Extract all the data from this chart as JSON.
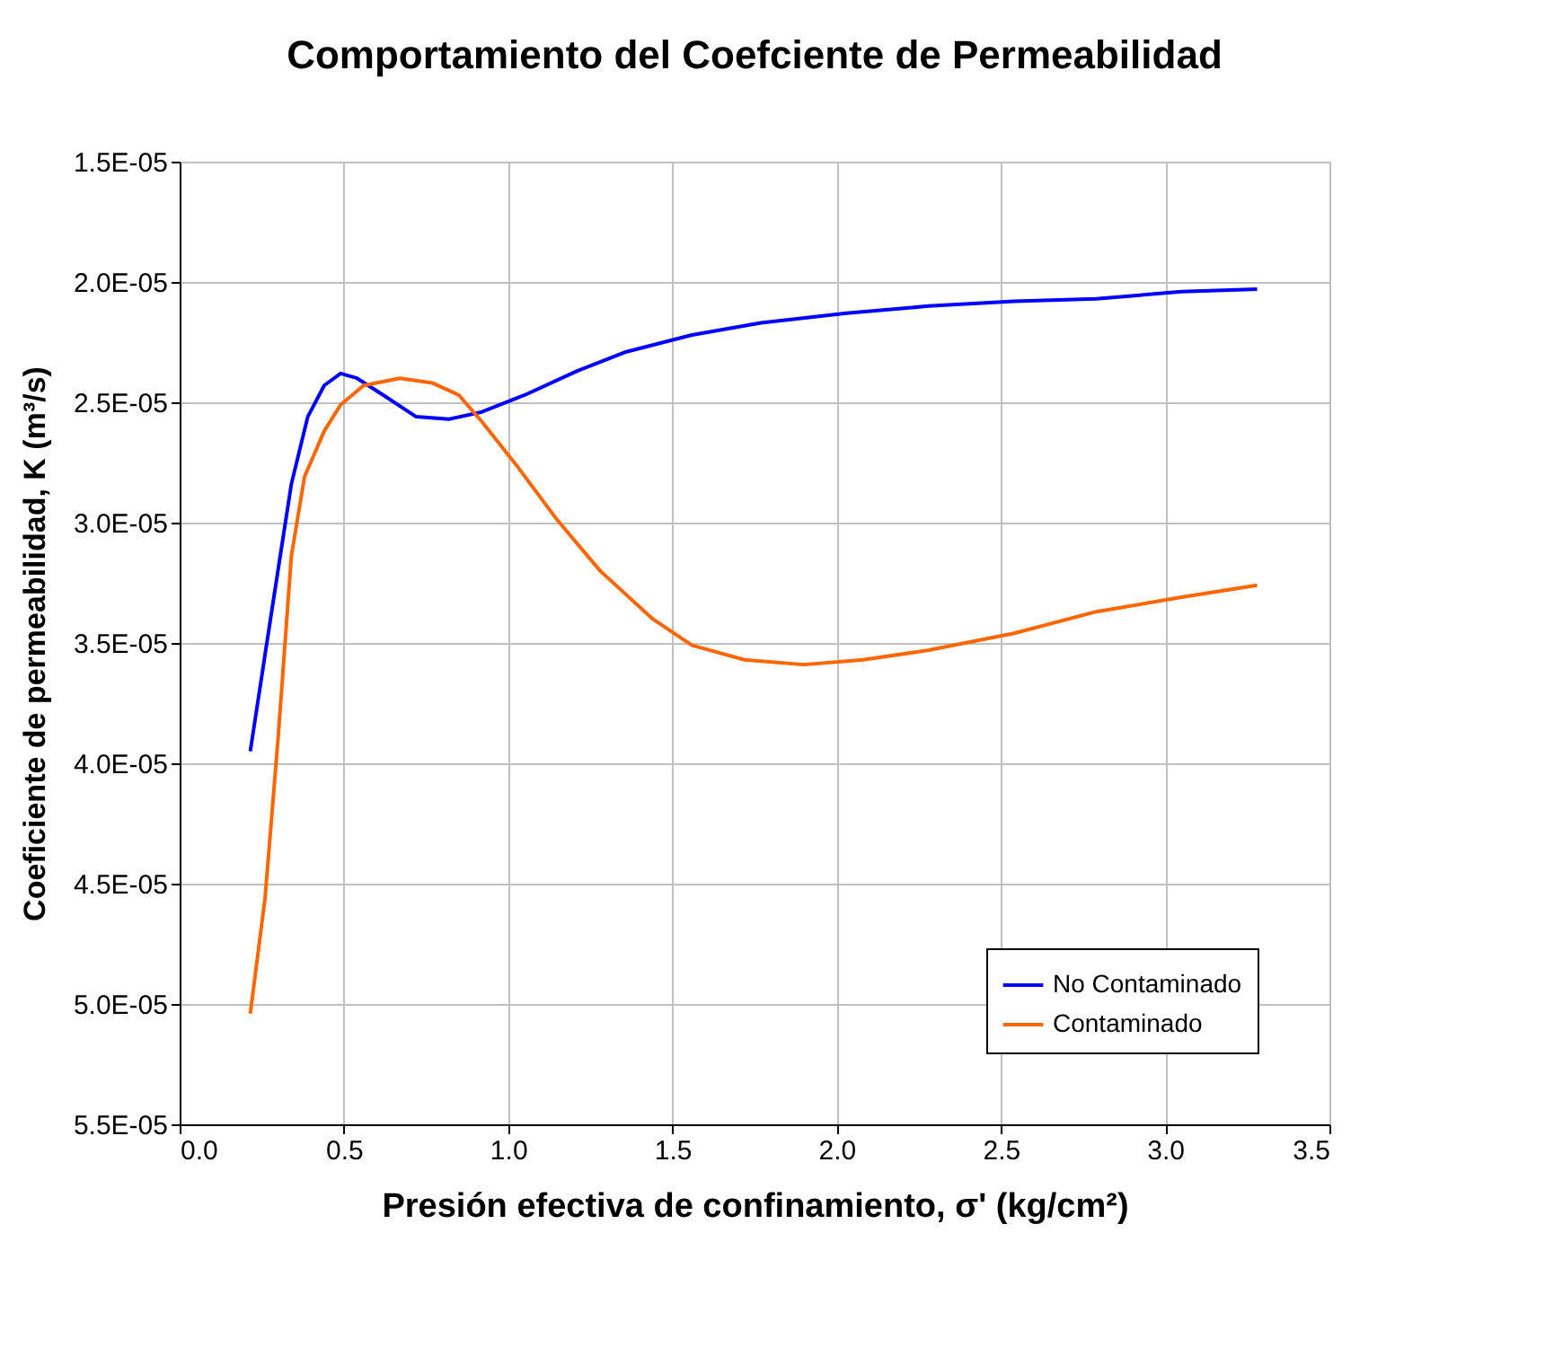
{
  "chart_data": {
    "type": "line",
    "title": "Comportamiento del Coefciente de Permeabilidad",
    "xlabel": "Presión efectiva de confinamiento, σ' (kg/cm²)",
    "ylabel": "Coeficiente de permeabilidad, K  (m³/s)",
    "series": [
      {
        "name": "No Contaminado",
        "color": "#0000ff",
        "x": [
          0.215,
          0.28,
          0.34,
          0.39,
          0.44,
          0.49,
          0.54,
          0.62,
          0.72,
          0.82,
          0.92,
          1.05,
          1.21,
          1.36,
          1.56,
          1.77,
          2.03,
          2.28,
          2.54,
          2.79,
          3.05,
          3.28
        ],
        "values": [
          3.95e-05,
          3.37e-05,
          2.84e-05,
          2.56e-05,
          2.43e-05,
          2.38e-05,
          2.4e-05,
          2.47e-05,
          2.56e-05,
          2.57e-05,
          2.54e-05,
          2.47e-05,
          2.37e-05,
          2.29e-05,
          2.22e-05,
          2.17e-05,
          2.13e-05,
          2.1e-05,
          2.08e-05,
          2.07e-05,
          2.04e-05,
          2.03e-05
        ]
      },
      {
        "name": "Contaminado",
        "color": "#ff6600",
        "x": [
          0.215,
          0.26,
          0.3,
          0.34,
          0.38,
          0.44,
          0.49,
          0.56,
          0.67,
          0.77,
          0.85,
          0.92,
          1.03,
          1.15,
          1.28,
          1.44,
          1.56,
          1.72,
          1.9,
          2.08,
          2.28,
          2.54,
          2.79,
          3.05,
          3.28
        ],
        "values": [
          5.04e-05,
          4.56e-05,
          3.89e-05,
          3.14e-05,
          2.81e-05,
          2.62e-05,
          2.51e-05,
          2.43e-05,
          2.4e-05,
          2.42e-05,
          2.47e-05,
          2.58e-05,
          2.77e-05,
          2.99e-05,
          3.2e-05,
          3.4e-05,
          3.51e-05,
          3.57e-05,
          3.59e-05,
          3.57e-05,
          3.53e-05,
          3.46e-05,
          3.37e-05,
          3.31e-05,
          3.26e-05
        ]
      }
    ],
    "xlim": [
      0,
      3.5
    ],
    "xticks": [
      {
        "value": 0,
        "label": "0.0"
      },
      {
        "value": 0.5,
        "label": "0.5"
      },
      {
        "value": 1,
        "label": "1.0"
      },
      {
        "value": 1.5,
        "label": "1.5"
      },
      {
        "value": 2,
        "label": "2.0"
      },
      {
        "value": 2.5,
        "label": "2.5"
      },
      {
        "value": 3,
        "label": "3.0"
      },
      {
        "value": 3.5,
        "label": "3.5"
      }
    ],
    "ylim": [
      5.5e-05,
      1.5e-05
    ],
    "yticks": [
      {
        "value": 1.5e-05,
        "label": "1.5E-05"
      },
      {
        "value": 2e-05,
        "label": "2.0E-05"
      },
      {
        "value": 2.5e-05,
        "label": "2.5E-05"
      },
      {
        "value": 3e-05,
        "label": "3.0E-05"
      },
      {
        "value": 3.5e-05,
        "label": "3.5E-05"
      },
      {
        "value": 4e-05,
        "label": "4.0E-05"
      },
      {
        "value": 4.5e-05,
        "label": "4.5E-05"
      },
      {
        "value": 5e-05,
        "label": "5.0E-05"
      },
      {
        "value": 5.5e-05,
        "label": "5.5E-05"
      }
    ],
    "grid": true,
    "legend": "bottom right",
    "marker": "none",
    "line_style": "solid"
  }
}
